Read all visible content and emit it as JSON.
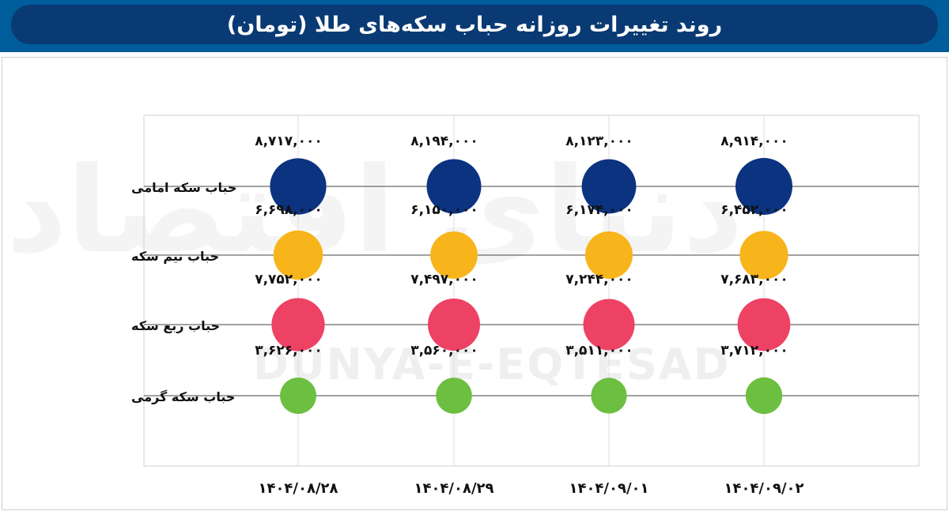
{
  "title": "روند تغییرات روزانه حباب سکه‌های طلا (تومان)",
  "watermark": "DUNYA-E-EQTESAD",
  "watermark_fa": "دنیای اقتصاد",
  "chart_data": {
    "type": "scatter",
    "subtype": "bubble",
    "title": "روند تغییرات روزانه حباب سکه‌های طلا (تومان)",
    "x_categories": [
      "۱۴۰۴/۰۸/۲۸",
      "۱۴۰۴/۰۸/۲۹",
      "۱۴۰۴/۰۹/۰۱",
      "۱۴۰۴/۰۹/۰۲"
    ],
    "y_categories": [
      "حباب سکه امامی",
      "حباب نیم سکه",
      "حباب ربع سکه",
      "حباب سکه گرمی"
    ],
    "grid": true,
    "series": [
      {
        "name": "حباب سکه امامی",
        "color": "#0b3380",
        "values": [
          8717000,
          8194000,
          8123000,
          8914000
        ],
        "labels": [
          "۸,۷۱۷,۰۰۰",
          "۸,۱۹۴,۰۰۰",
          "۸,۱۲۳,۰۰۰",
          "۸,۹۱۴,۰۰۰"
        ]
      },
      {
        "name": "حباب نیم سکه",
        "color": "#f8b41b",
        "values": [
          6698000,
          6150000,
          6174000,
          6452000
        ],
        "labels": [
          "۶,۶۹۸,۰۰۰",
          "۶,۱۵۰,۰۰۰",
          "۶,۱۷۴,۰۰۰",
          "۶,۴۵۲,۰۰۰"
        ]
      },
      {
        "name": "حباب ربع سکه",
        "color": "#ee4265",
        "values": [
          7752000,
          7497000,
          7244000,
          7683000
        ],
        "labels": [
          "۷,۷۵۲,۰۰۰",
          "۷,۴۹۷,۰۰۰",
          "۷,۲۴۴,۰۰۰",
          "۷,۶۸۳,۰۰۰"
        ]
      },
      {
        "name": "حباب سکه گرمی",
        "color": "#6cbf40",
        "values": [
          3626000,
          3560000,
          3511000,
          3712000
        ],
        "labels": [
          "۳,۶۲۶,۰۰۰",
          "۳,۵۶۰,۰۰۰",
          "۳,۵۱۱,۰۰۰",
          "۳,۷۱۲,۰۰۰"
        ]
      }
    ]
  }
}
